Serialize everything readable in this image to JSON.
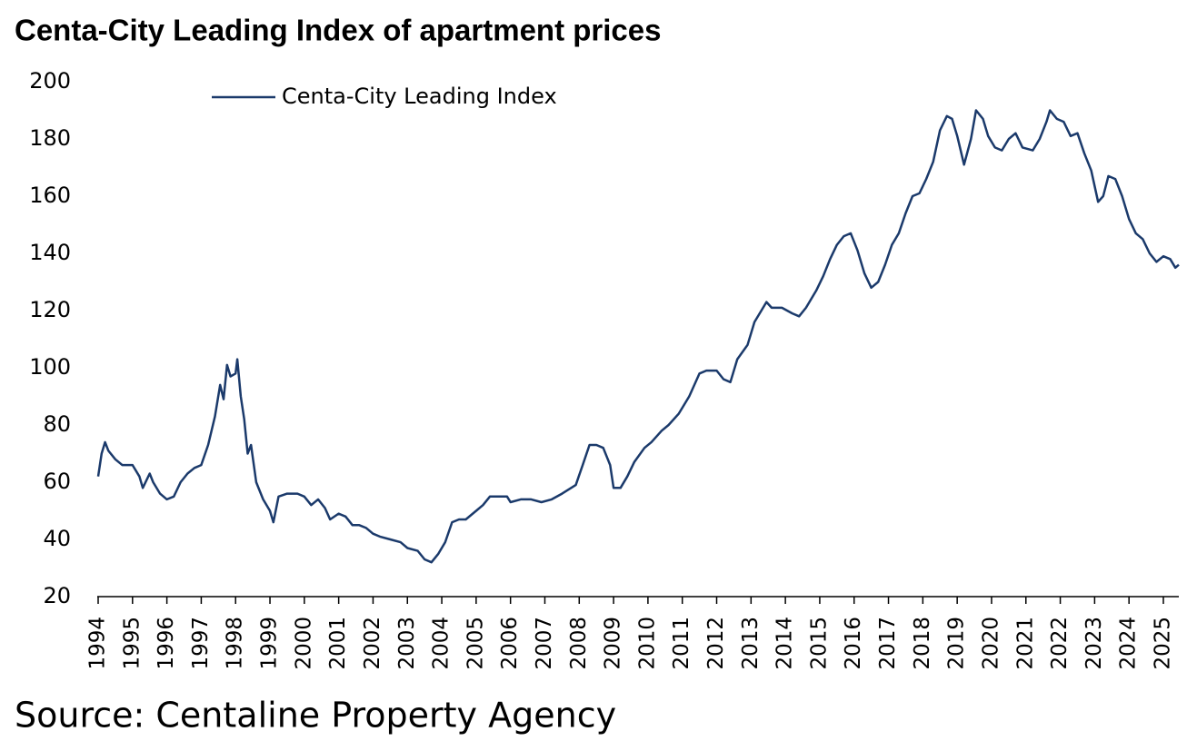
{
  "chart_data": {
    "type": "line",
    "title": "Centa-City Leading Index of apartment prices",
    "source": "Source: Centaline Property Agency",
    "legend": "upper-left",
    "x": [
      1994.0,
      1994.1,
      1994.2,
      1994.3,
      1994.5,
      1994.7,
      1995.0,
      1995.2,
      1995.3,
      1995.5,
      1995.6,
      1995.8,
      1996.0,
      1996.2,
      1996.4,
      1996.6,
      1996.8,
      1997.0,
      1997.2,
      1997.4,
      1997.55,
      1997.65,
      1997.75,
      1997.85,
      1998.0,
      1998.05,
      1998.15,
      1998.25,
      1998.35,
      1998.45,
      1998.6,
      1998.8,
      1999.0,
      1999.1,
      1999.25,
      1999.5,
      1999.8,
      2000.0,
      2000.2,
      2000.4,
      2000.6,
      2000.75,
      2001.0,
      2001.2,
      2001.4,
      2001.6,
      2001.8,
      2002.0,
      2002.2,
      2002.5,
      2002.8,
      2003.0,
      2003.3,
      2003.5,
      2003.7,
      2003.9,
      2004.1,
      2004.3,
      2004.5,
      2004.7,
      2005.0,
      2005.2,
      2005.4,
      2005.6,
      2005.9,
      2006.0,
      2006.3,
      2006.6,
      2006.9,
      2007.2,
      2007.5,
      2007.9,
      2008.1,
      2008.3,
      2008.5,
      2008.7,
      2008.9,
      2009.0,
      2009.2,
      2009.4,
      2009.6,
      2009.9,
      2010.1,
      2010.4,
      2010.6,
      2010.9,
      2011.2,
      2011.5,
      2011.7,
      2012.0,
      2012.2,
      2012.4,
      2012.6,
      2012.9,
      2013.1,
      2013.3,
      2013.45,
      2013.6,
      2013.9,
      2014.2,
      2014.4,
      2014.6,
      2014.9,
      2015.1,
      2015.3,
      2015.5,
      2015.7,
      2015.9,
      2016.1,
      2016.3,
      2016.5,
      2016.7,
      2016.9,
      2017.1,
      2017.3,
      2017.5,
      2017.7,
      2017.9,
      2018.1,
      2018.3,
      2018.5,
      2018.7,
      2018.85,
      2019.0,
      2019.2,
      2019.4,
      2019.55,
      2019.75,
      2019.9,
      2020.1,
      2020.3,
      2020.5,
      2020.7,
      2020.9,
      2021.2,
      2021.4,
      2021.6,
      2021.7,
      2021.9,
      2022.1,
      2022.3,
      2022.5,
      2022.7,
      2022.9,
      2023.1,
      2023.25,
      2023.4,
      2023.6,
      2023.8,
      2024.0,
      2024.2,
      2024.4,
      2024.6,
      2024.8,
      2025.0,
      2025.2,
      2025.35,
      2025.45
    ],
    "series": [
      {
        "name": "Centa-City Leading Index",
        "color": "#1b3a6b",
        "values": [
          62,
          70,
          74,
          71,
          68,
          66,
          66,
          62,
          58,
          63,
          60,
          56,
          54,
          55,
          60,
          63,
          65,
          66,
          73,
          83,
          94,
          89,
          101,
          97,
          98,
          103,
          90,
          82,
          70,
          73,
          60,
          54,
          50,
          46,
          55,
          56,
          56,
          55,
          52,
          54,
          51,
          47,
          49,
          48,
          45,
          45,
          44,
          42,
          41,
          40,
          39,
          37,
          36,
          33,
          32,
          35,
          39,
          46,
          47,
          47,
          50,
          52,
          55,
          55,
          55,
          53,
          54,
          54,
          53,
          54,
          56,
          59,
          66,
          73,
          73,
          72,
          66,
          58,
          58,
          62,
          67,
          72,
          74,
          78,
          80,
          84,
          90,
          98,
          99,
          99,
          96,
          95,
          103,
          108,
          116,
          120,
          123,
          121,
          121,
          119,
          118,
          121,
          127,
          132,
          138,
          143,
          146,
          147,
          141,
          133,
          128,
          130,
          136,
          143,
          147,
          154,
          160,
          161,
          166,
          172,
          183,
          188,
          187,
          181,
          171,
          180,
          190,
          187,
          181,
          177,
          176,
          180,
          182,
          177,
          176,
          180,
          186,
          190,
          187,
          186,
          181,
          182,
          175,
          169,
          158,
          160,
          167,
          166,
          160,
          152,
          147,
          145,
          140,
          137,
          139,
          138,
          135,
          136
        ]
      }
    ],
    "xlim": [
      1994,
      2025.45
    ],
    "xticks": [
      1994,
      1995,
      1996,
      1997,
      1998,
      1999,
      2000,
      2001,
      2002,
      2003,
      2004,
      2005,
      2006,
      2007,
      2008,
      2009,
      2010,
      2011,
      2012,
      2013,
      2014,
      2015,
      2016,
      2017,
      2018,
      2019,
      2020,
      2021,
      2022,
      2023,
      2024,
      2025
    ],
    "ylim": [
      20,
      200
    ],
    "yticks": [
      20,
      40,
      60,
      80,
      100,
      120,
      140,
      160,
      180,
      200
    ]
  }
}
